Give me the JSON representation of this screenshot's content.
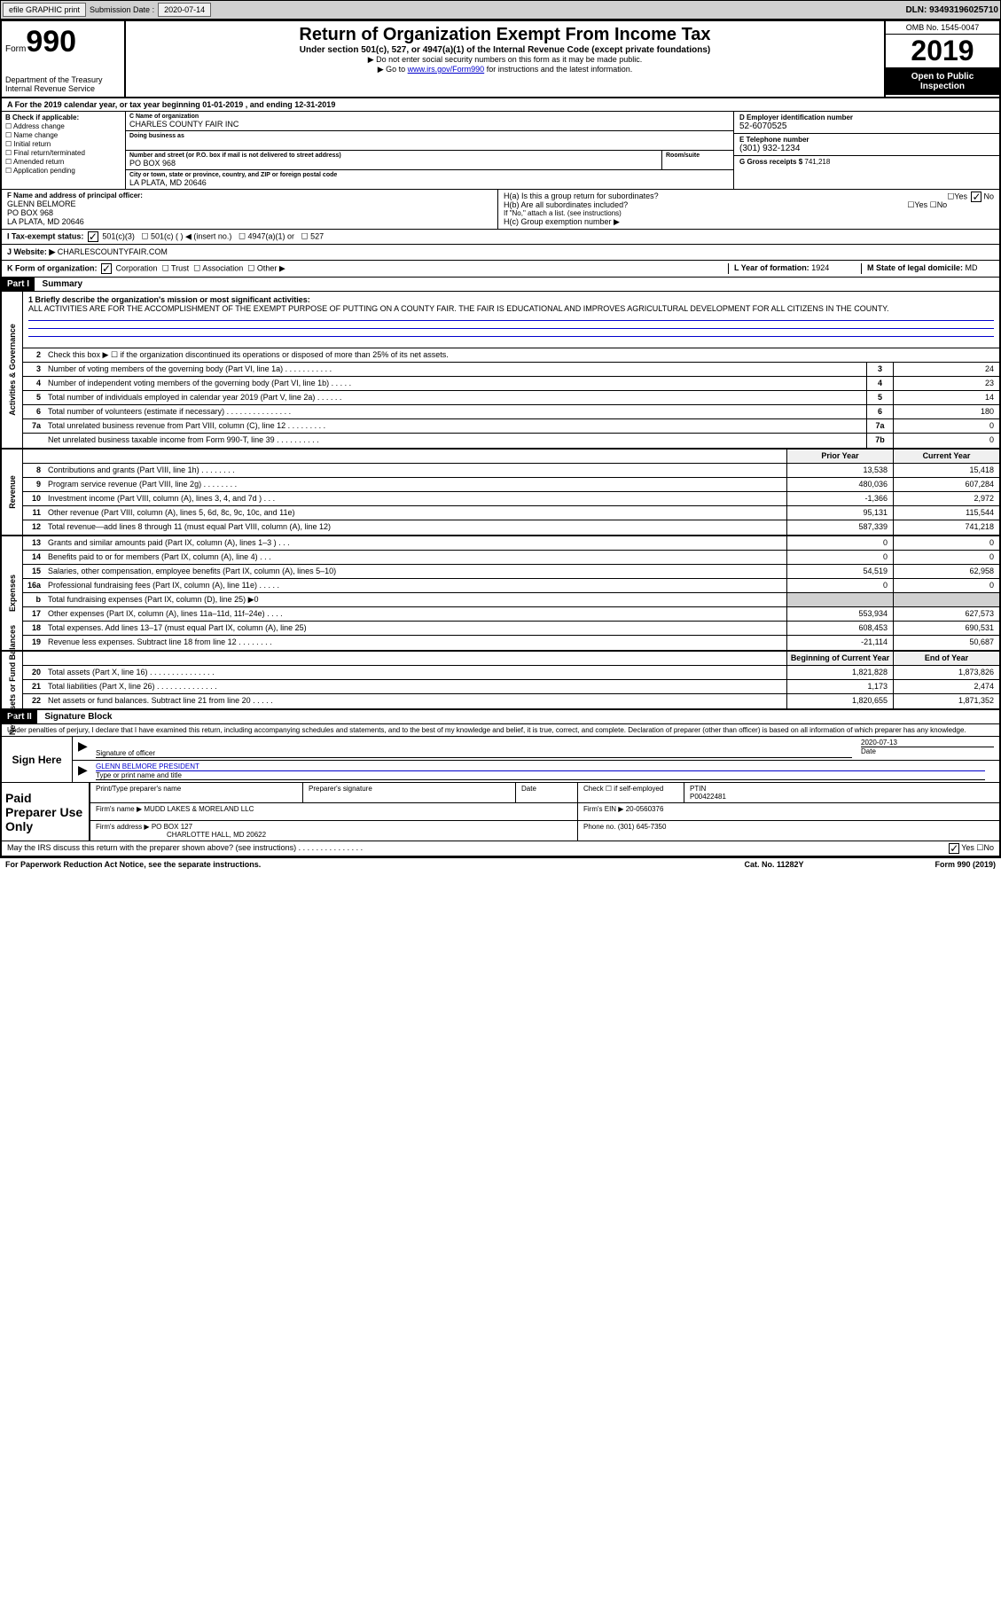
{
  "topbar": {
    "efile": "efile GRAPHIC print",
    "submission_label": "Submission Date : ",
    "submission_date": "2020-07-14",
    "dln_label": "DLN: ",
    "dln": "93493196025710"
  },
  "header": {
    "form_word": "Form",
    "form_num": "990",
    "dept": "Department of the Treasury\nInternal Revenue Service",
    "title": "Return of Organization Exempt From Income Tax",
    "sub": "Under section 501(c), 527, or 4947(a)(1) of the Internal Revenue Code (except private foundations)",
    "note1": "▶ Do not enter social security numbers on this form as it may be made public.",
    "note2a": "▶ Go to ",
    "note2_link": "www.irs.gov/Form990",
    "note2b": " for instructions and the latest information.",
    "omb": "OMB No. 1545-0047",
    "year": "2019",
    "open_public": "Open to Public Inspection"
  },
  "period": "A For the 2019 calendar year, or tax year beginning 01-01-2019    , and ending 12-31-2019",
  "section_b": {
    "label": "B Check if applicable:",
    "items": [
      "Address change",
      "Name change",
      "Initial return",
      "Final return/terminated",
      "Amended return",
      "Application pending"
    ]
  },
  "section_c": {
    "name_label": "C Name of organization",
    "name": "CHARLES COUNTY FAIR INC",
    "dba_label": "Doing business as",
    "addr_label": "Number and street (or P.O. box if mail is not delivered to street address)",
    "room_label": "Room/suite",
    "addr": "PO BOX 968",
    "city_label": "City or town, state or province, country, and ZIP or foreign postal code",
    "city": "LA PLATA, MD  20646"
  },
  "section_d": {
    "label": "D Employer identification number",
    "value": "52-6070525"
  },
  "section_e": {
    "label": "E Telephone number",
    "value": "(301) 932-1234"
  },
  "section_g": {
    "label": "G Gross receipts $",
    "value": "741,218"
  },
  "section_f": {
    "label": "F  Name and address of principal officer:",
    "name": "GLENN BELMORE",
    "addr1": "PO BOX 968",
    "addr2": "LA PLATA, MD  20646"
  },
  "section_h": {
    "ha": "H(a)  Is this a group return for subordinates?",
    "hb": "H(b)  Are all subordinates included?",
    "hb_note": "If \"No,\" attach a list. (see instructions)",
    "hc": "H(c)  Group exemption number ▶"
  },
  "section_i": {
    "label": "I   Tax-exempt status:",
    "opts": [
      "501(c)(3)",
      "501(c) (  ) ◀ (insert no.)",
      "4947(a)(1) or",
      "527"
    ]
  },
  "section_j": {
    "label": "J   Website: ▶",
    "value": "CHARLESCOUNTYFAIR.COM"
  },
  "section_k": {
    "label": "K Form of organization:",
    "opts": [
      "Corporation",
      "Trust",
      "Association",
      "Other ▶"
    ]
  },
  "section_l": {
    "label": "L Year of formation:",
    "value": "1924"
  },
  "section_m": {
    "label": "M State of legal domicile:",
    "value": "MD"
  },
  "part1": {
    "header": "Part I",
    "title": "Summary"
  },
  "mission": {
    "label": "1  Briefly describe the organization's mission or most significant activities:",
    "text": "ALL ACTIVITIES ARE FOR THE ACCOMPLISHMENT OF THE EXEMPT PURPOSE OF PUTTING ON A COUNTY FAIR. THE FAIR IS EDUCATIONAL AND IMPROVES AGRICULTURAL DEVELOPMENT FOR ALL CITIZENS IN THE COUNTY."
  },
  "governance": {
    "side": "Activities & Governance",
    "lines": [
      {
        "n": "2",
        "t": "Check this box ▶ ☐  if the organization discontinued its operations or disposed of more than 25% of its net assets."
      },
      {
        "n": "3",
        "t": "Number of voting members of the governing body (Part VI, line 1a)  .  .  .  .  .  .  .  .  .  .  .",
        "c": "3",
        "v": "24"
      },
      {
        "n": "4",
        "t": "Number of independent voting members of the governing body (Part VI, line 1b)  .  .  .  .  .",
        "c": "4",
        "v": "23"
      },
      {
        "n": "5",
        "t": "Total number of individuals employed in calendar year 2019 (Part V, line 2a)  .  .  .  .  .  .",
        "c": "5",
        "v": "14"
      },
      {
        "n": "6",
        "t": "Total number of volunteers (estimate if necessary)   .  .  .  .  .  .  .  .  .  .  .  .  .  .  .",
        "c": "6",
        "v": "180"
      },
      {
        "n": "7a",
        "t": "Total unrelated business revenue from Part VIII, column (C), line 12  .  .  .  .  .  .  .  .  .",
        "c": "7a",
        "v": "0"
      },
      {
        "n": "",
        "t": "Net unrelated business taxable income from Form 990-T, line 39  .  .  .  .  .  .  .  .  .  .",
        "c": "7b",
        "v": "0"
      }
    ]
  },
  "revenue": {
    "side": "Revenue",
    "header": {
      "prior": "Prior Year",
      "current": "Current Year"
    },
    "lines": [
      {
        "n": "8",
        "t": "Contributions and grants (Part VIII, line 1h)  .  .  .  .  .  .  .  .",
        "p": "13,538",
        "c": "15,418"
      },
      {
        "n": "9",
        "t": "Program service revenue (Part VIII, line 2g)  .  .  .  .  .  .  .  .",
        "p": "480,036",
        "c": "607,284"
      },
      {
        "n": "10",
        "t": "Investment income (Part VIII, column (A), lines 3, 4, and 7d )  .  .  .",
        "p": "-1,366",
        "c": "2,972"
      },
      {
        "n": "11",
        "t": "Other revenue (Part VIII, column (A), lines 5, 6d, 8c, 9c, 10c, and 11e)",
        "p": "95,131",
        "c": "115,544"
      },
      {
        "n": "12",
        "t": "Total revenue—add lines 8 through 11 (must equal Part VIII, column (A), line 12)",
        "p": "587,339",
        "c": "741,218"
      }
    ]
  },
  "expenses": {
    "side": "Expenses",
    "lines": [
      {
        "n": "13",
        "t": "Grants and similar amounts paid (Part IX, column (A), lines 1–3 )  .  .  .",
        "p": "0",
        "c": "0"
      },
      {
        "n": "14",
        "t": "Benefits paid to or for members (Part IX, column (A), line 4)  .  .  .",
        "p": "0",
        "c": "0"
      },
      {
        "n": "15",
        "t": "Salaries, other compensation, employee benefits (Part IX, column (A), lines 5–10)",
        "p": "54,519",
        "c": "62,958"
      },
      {
        "n": "16a",
        "t": "Professional fundraising fees (Part IX, column (A), line 11e)  .  .  .  .  .",
        "p": "0",
        "c": "0"
      },
      {
        "n": "b",
        "t": "Total fundraising expenses (Part IX, column (D), line 25) ▶0",
        "gray": true
      },
      {
        "n": "17",
        "t": "Other expenses (Part IX, column (A), lines 11a–11d, 11f–24e)  .  .  .  .",
        "p": "553,934",
        "c": "627,573"
      },
      {
        "n": "18",
        "t": "Total expenses. Add lines 13–17 (must equal Part IX, column (A), line 25)",
        "p": "608,453",
        "c": "690,531"
      },
      {
        "n": "19",
        "t": "Revenue less expenses. Subtract line 18 from line 12 .  .  .  .  .  .  .  .",
        "p": "-21,114",
        "c": "50,687"
      }
    ]
  },
  "netassets": {
    "side": "Net Assets or Fund Balances",
    "header": {
      "prior": "Beginning of Current Year",
      "current": "End of Year"
    },
    "lines": [
      {
        "n": "20",
        "t": "Total assets (Part X, line 16)  .  .  .  .  .  .  .  .  .  .  .  .  .  .  .",
        "p": "1,821,828",
        "c": "1,873,826"
      },
      {
        "n": "21",
        "t": "Total liabilities (Part X, line 26) .  .  .  .  .  .  .  .  .  .  .  .  .  .",
        "p": "1,173",
        "c": "2,474"
      },
      {
        "n": "22",
        "t": "Net assets or fund balances. Subtract line 21 from line 20  .  .  .  .  .",
        "p": "1,820,655",
        "c": "1,871,352"
      }
    ]
  },
  "part2": {
    "header": "Part II",
    "title": "Signature Block"
  },
  "declaration": "Under penalties of perjury, I declare that I have examined this return, including accompanying schedules and statements, and to the best of my knowledge and belief, it is true, correct, and complete. Declaration of preparer (other than officer) is based on all information of which preparer has any knowledge.",
  "sign": {
    "left": "Sign Here",
    "officer_label": "Signature of officer",
    "date": "2020-07-13",
    "date_label": "Date",
    "name": "GLENN BELMORE PRESIDENT",
    "name_label": "Type or print name and title"
  },
  "paid": {
    "left": "Paid Preparer Use Only",
    "h1": "Print/Type preparer's name",
    "h2": "Preparer's signature",
    "h3": "Date",
    "h4a": "Check ☐ if self-employed",
    "h4b_label": "PTIN",
    "h4b": "P00422481",
    "firm_label": "Firm's name    ▶",
    "firm": "MUDD LAKES & MORELAND LLC",
    "ein_label": "Firm's EIN ▶",
    "ein": "20-0560376",
    "addr_label": "Firm's address ▶",
    "addr": "PO BOX 127",
    "addr2": "CHARLOTTE HALL, MD  20622",
    "phone_label": "Phone no.",
    "phone": "(301) 645-7350"
  },
  "discuss": "May the IRS discuss this return with the preparer shown above? (see instructions)  .  .  .  .  .  .  .  .  .  .  .  .  .  .  .",
  "footer": {
    "left": "For Paperwork Reduction Act Notice, see the separate instructions.",
    "mid": "Cat. No. 11282Y",
    "right": "Form 990 (2019)"
  },
  "yes": "Yes",
  "no": "No"
}
